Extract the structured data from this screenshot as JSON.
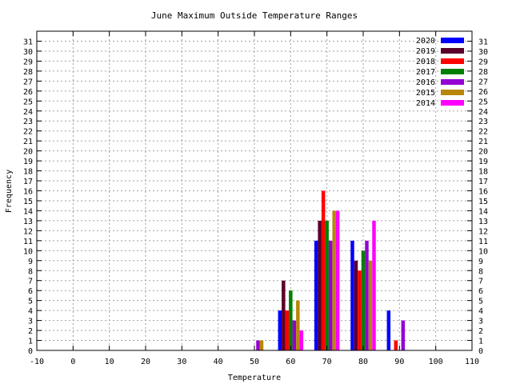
{
  "chart_data": {
    "type": "bar",
    "title": "June Maximum Outside Temperature Ranges",
    "xlabel": "Temperature",
    "ylabel": "Frequency",
    "xlim": [
      -10,
      110
    ],
    "ylim": [
      0,
      32
    ],
    "x_ticks": [
      -10,
      0,
      10,
      20,
      30,
      40,
      50,
      60,
      70,
      80,
      90,
      100,
      110
    ],
    "y_ticks": [
      0,
      1,
      2,
      3,
      4,
      5,
      6,
      7,
      8,
      9,
      10,
      11,
      12,
      13,
      14,
      15,
      16,
      17,
      18,
      19,
      20,
      21,
      22,
      23,
      24,
      25,
      26,
      27,
      28,
      29,
      30,
      31
    ],
    "grid": true,
    "legend_position": "top-right",
    "bin_centers": [
      50,
      60,
      70,
      80,
      90
    ],
    "series": [
      {
        "name": "2020",
        "color": "#0000ff",
        "values": [
          0,
          4,
          11,
          11,
          4
        ]
      },
      {
        "name": "2019",
        "color": "#5a002a",
        "values": [
          0,
          7,
          13,
          9,
          0
        ]
      },
      {
        "name": "2018",
        "color": "#ff0000",
        "values": [
          0,
          4,
          16,
          8,
          1
        ]
      },
      {
        "name": "2017",
        "color": "#008000",
        "values": [
          0,
          6,
          13,
          10,
          0
        ]
      },
      {
        "name": "2016",
        "color": "#9400d3",
        "values": [
          1,
          3,
          11,
          11,
          3
        ]
      },
      {
        "name": "2015",
        "color": "#b8860b",
        "values": [
          1,
          5,
          14,
          9,
          0
        ]
      },
      {
        "name": "2014",
        "color": "#ff00ff",
        "values": [
          0,
          2,
          14,
          13,
          0
        ]
      }
    ]
  }
}
